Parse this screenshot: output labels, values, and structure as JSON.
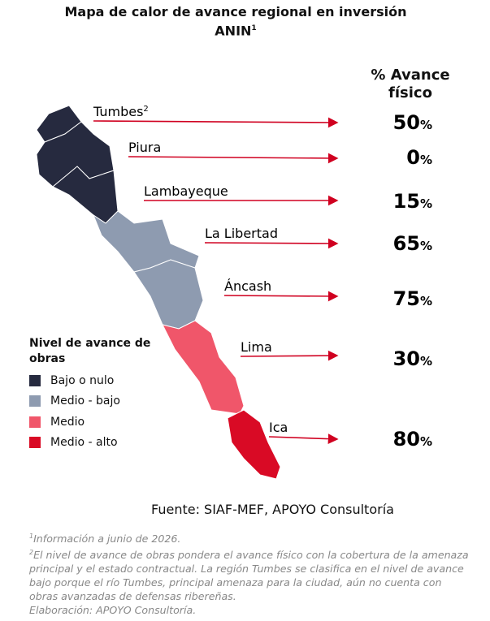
{
  "header": {
    "title": "Mapa de calor de avance regional en inversión",
    "title_line2": "ANIN",
    "title_note": "1"
  },
  "value_header": "% Avance físico",
  "regions": [
    {
      "name": "Tumbes",
      "note": "2",
      "value": "50%",
      "color": "#262a3f"
    },
    {
      "name": "Piura",
      "value": "0%",
      "color": "#262a3f"
    },
    {
      "name": "Lambayeque",
      "value": "15%",
      "color": "#262a3f"
    },
    {
      "name": "La Libertad",
      "value": "65%",
      "color": "#8e9bb0"
    },
    {
      "name": "Áncash",
      "value": "75%",
      "color": "#8e9bb0"
    },
    {
      "name": "Lima",
      "value": "30%",
      "color": "#f0566a"
    },
    {
      "name": "Ica",
      "value": "80%",
      "color": "#d90a25"
    }
  ],
  "legend": {
    "title": "Nivel de avance de obras",
    "items": [
      {
        "label": "Bajo o nulo",
        "color": "#262a3f"
      },
      {
        "label": "Medio - bajo",
        "color": "#8e9bb0"
      },
      {
        "label": "Medio",
        "color": "#f0566a"
      },
      {
        "label": "Medio - alto",
        "color": "#d90a25"
      }
    ]
  },
  "source": "Fuente: SIAF-MEF, APOYO Consultoría",
  "footnotes": [
    {
      "marker": "1",
      "text": "Información a junio de 2026."
    },
    {
      "marker": "2",
      "text": "El nivel de avance de obras pondera el avance físico con la cobertura de la amenaza principal y el estado contractual. La región Tumbes se clasifica en el nivel de avance bajo porque el río Tumbes, principal amenaza para la ciudad, aún no cuenta con obras avanzadas de defensas ribereñas."
    },
    {
      "text": "Elaboración: APOYO Consultoría."
    }
  ]
}
